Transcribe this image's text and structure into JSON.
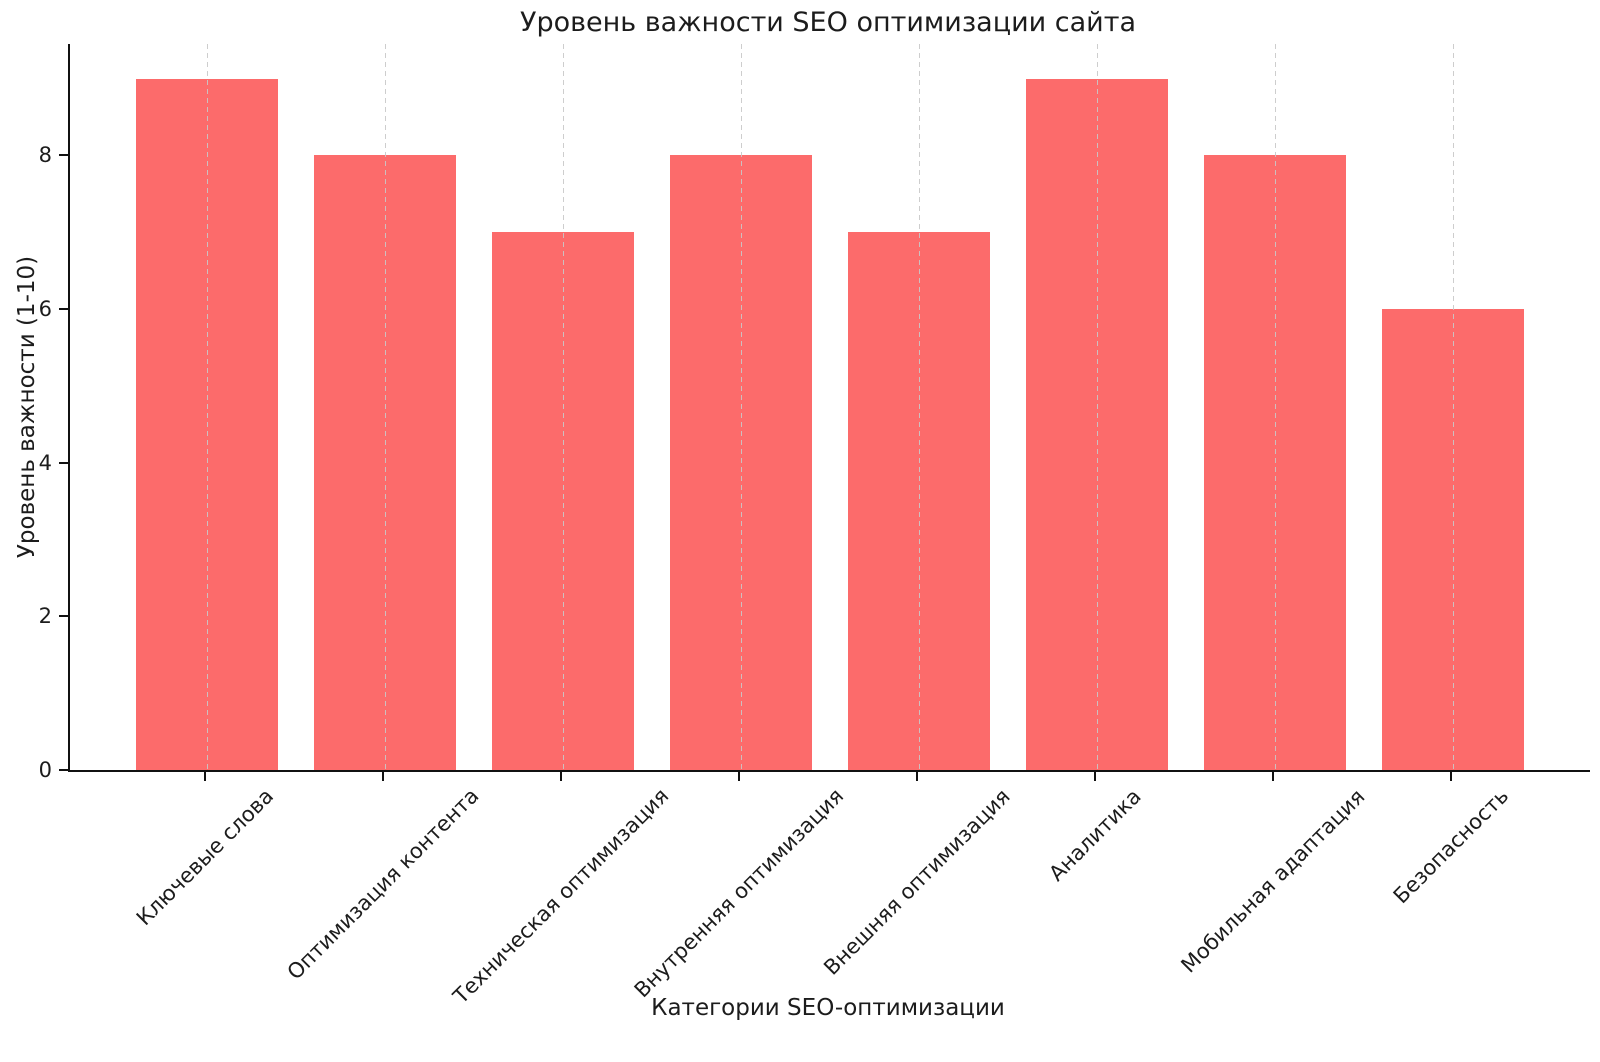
{
  "chart_data": {
    "type": "bar",
    "title": "Уровень важности SEO оптимизации сайта",
    "xlabel": "Категории SEO-оптимизации",
    "ylabel": "Уровень важности (1-10)",
    "categories": [
      "Ключевые слова",
      "Оптимизация контента",
      "Техническая оптимизация",
      "Внутренняя оптимизация",
      "Внешняя оптимизация",
      "Аналитика",
      "Мобильная адаптация",
      "Безопасность"
    ],
    "values": [
      9,
      8,
      7,
      8,
      7,
      9,
      8,
      6
    ],
    "ylim": [
      0,
      9.45
    ],
    "yticks": [
      0,
      2,
      4,
      6,
      8
    ],
    "bar_color": "#FC6B6B",
    "grid": "vertical-dashed-over-bars",
    "grid_color": "#c8c8c8",
    "axis_color": "#111111",
    "legend": "none"
  }
}
